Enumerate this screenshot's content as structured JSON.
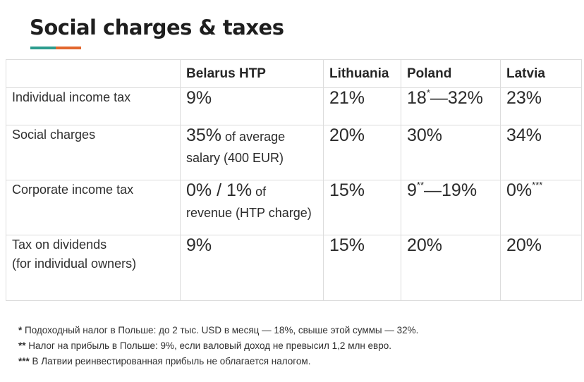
{
  "title": "Social charges & taxes",
  "colors": {
    "accent_teal": "#2c9c8e",
    "accent_orange": "#e2672d"
  },
  "table": {
    "headers": [
      "",
      "Belarus HTP",
      "Lithuania",
      "Poland",
      "Latvia"
    ],
    "rows": [
      {
        "label": "Individual income tax",
        "belarus": {
          "main": "9%"
        },
        "lithuania": {
          "main": "21%"
        },
        "poland": {
          "a": "18",
          "mark": "*",
          "b": "—32%"
        },
        "latvia": {
          "main": "23%"
        }
      },
      {
        "label": "Social charges",
        "belarus": {
          "main": "35%",
          "suffix": " of average",
          "line2": "salary (400 EUR)"
        },
        "lithuania": {
          "main": "20%"
        },
        "poland": {
          "main": "30%"
        },
        "latvia": {
          "main": "34%"
        }
      },
      {
        "label": "Corporate income tax",
        "belarus": {
          "main": "0% / 1%",
          "suffix": " of",
          "line2": "revenue (HTP charge)"
        },
        "lithuania": {
          "main": "15%"
        },
        "poland": {
          "a": "9",
          "mark": "**",
          "b": "—19%"
        },
        "latvia": {
          "a": "0%",
          "mark": "***"
        }
      },
      {
        "label_line1": "Tax on dividends",
        "label_line2": "(for individual owners)",
        "belarus": {
          "main": "9%"
        },
        "lithuania": {
          "main": "15%"
        },
        "poland": {
          "main": "20%"
        },
        "latvia": {
          "main": "20%"
        }
      }
    ]
  },
  "footnotes": [
    {
      "mark": "*",
      "text": " Подоходный налог в Польше:  до 2 тыс. USD в месяц — 18%, свыше этой суммы — 32%."
    },
    {
      "mark": "**",
      "text": " Налог на прибыль в Польше:  9%, если валовый доход не превысил 1,2 млн евро."
    },
    {
      "mark": "***",
      "text": " В Латвии реинвестированная прибыль не облагается налогом."
    }
  ]
}
